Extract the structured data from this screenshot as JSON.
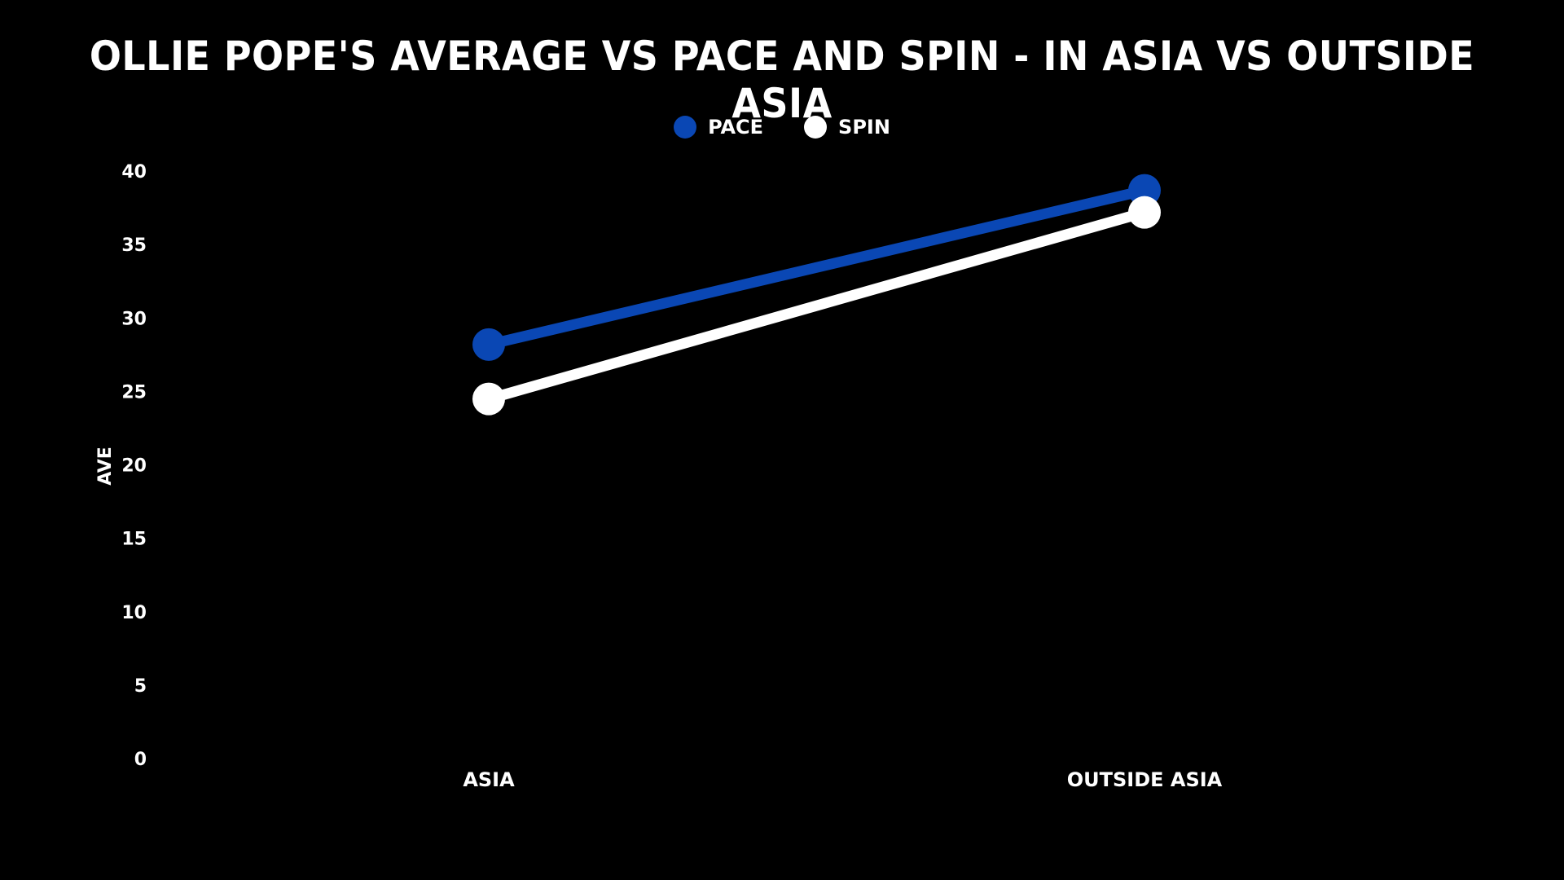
{
  "chart_data": {
    "type": "line",
    "title": "OLLIE POPE'S AVERAGE VS PACE AND SPIN - IN ASIA VS OUTSIDE ASIA",
    "xlabel": "",
    "ylabel": "AVE",
    "categories": [
      "ASIA",
      "OUTSIDE ASIA"
    ],
    "ylim": [
      0,
      40
    ],
    "yticks": [
      0,
      5,
      10,
      15,
      20,
      25,
      30,
      35,
      40
    ],
    "grid": false,
    "legend_position": "top-center",
    "series": [
      {
        "name": "PACE",
        "color": "#0a47b4",
        "values": [
          28.3,
          38.8
        ]
      },
      {
        "name": "SPIN",
        "color": "#ffffff",
        "values": [
          24.6,
          37.3
        ]
      }
    ]
  },
  "background_color": "#000000"
}
